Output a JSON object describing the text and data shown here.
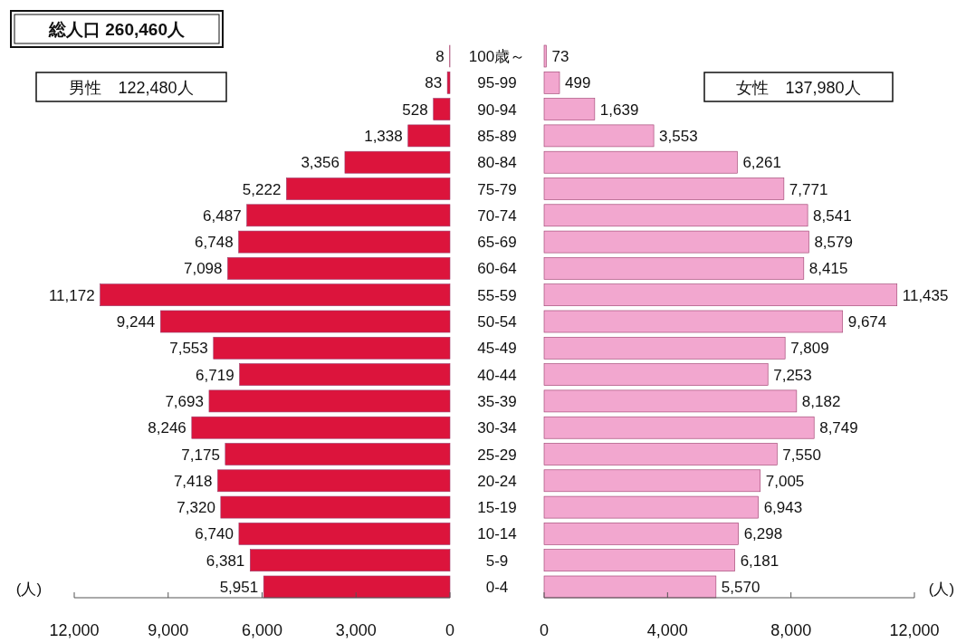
{
  "chart_data": [
    {
      "type": "bar",
      "orientation": "horizontal",
      "title": "総人口 260,460人",
      "subtitle": "男性　122,480人",
      "xlabel": "(人)",
      "color": "#dc143c",
      "value_labels": [
        "8",
        "83",
        "528",
        "1,338",
        "3,356",
        "5,222",
        "6,487",
        "6,748",
        "7,098",
        "11,172",
        "9,244",
        "7,553",
        "6,719",
        "7,693",
        "8,246",
        "7,175",
        "7,418",
        "7,320",
        "6,740",
        "6,381",
        "5,951"
      ],
      "categories": [
        "100歳～",
        "95-99",
        "90-94",
        "85-89",
        "80-84",
        "75-79",
        "70-74",
        "65-69",
        "60-64",
        "55-59",
        "50-54",
        "45-49",
        "40-44",
        "35-39",
        "30-34",
        "25-29",
        "20-24",
        "15-19",
        "10-14",
        "5-9",
        "0-4"
      ],
      "values": [
        8,
        83,
        528,
        1338,
        3356,
        5222,
        6487,
        6748,
        7098,
        11172,
        9244,
        7553,
        6719,
        7693,
        8246,
        7175,
        7418,
        7320,
        6740,
        6381,
        5951
      ],
      "xlim": [
        12000,
        0
      ],
      "xticks": [
        {
          "value": 12000,
          "label": "12,000"
        },
        {
          "value": 9000,
          "label": "9,000"
        },
        {
          "value": 6000,
          "label": "6,000"
        },
        {
          "value": 3000,
          "label": "3,000"
        },
        0
      ]
    },
    {
      "type": "bar",
      "orientation": "horizontal",
      "subtitle": "女性　137,980人",
      "xlabel": "(人)",
      "color": "#f2a7cf",
      "tick_labels": "x",
      "value_labels": [
        "73",
        "499",
        "1,639",
        "3,553",
        "6,261",
        "7,771",
        "8,541",
        "8,579",
        "8,415",
        "11,435",
        "9,674",
        "7,809",
        "7,253",
        "8,182",
        "8,749",
        "7,550",
        "7,005",
        "6,943",
        "6,298",
        "6,181",
        "5,570"
      ],
      "categories": [
        "100歳～",
        "95-99",
        "90-94",
        "85-89",
        "80-84",
        "75-79",
        "70-74",
        "65-69",
        "60-64",
        "55-59",
        "50-54",
        "45-49",
        "40-44",
        "35-39",
        "30-34",
        "25-29",
        "20-24",
        "15-19",
        "10-14",
        "5-9",
        "0-4"
      ],
      "values": [
        73,
        499,
        1639,
        3553,
        6261,
        7771,
        8541,
        8579,
        8415,
        11435,
        9674,
        7809,
        7253,
        8182,
        8749,
        7550,
        7005,
        6943,
        6298,
        6181,
        5570
      ],
      "xlim": [
        0,
        12000
      ],
      "xticks": [
        0,
        {
          "value": 4000,
          "label": "4,000"
        },
        {
          "value": 8000,
          "label": "8,000"
        },
        {
          "value": 12000,
          "label": "12,000"
        }
      ]
    }
  ]
}
